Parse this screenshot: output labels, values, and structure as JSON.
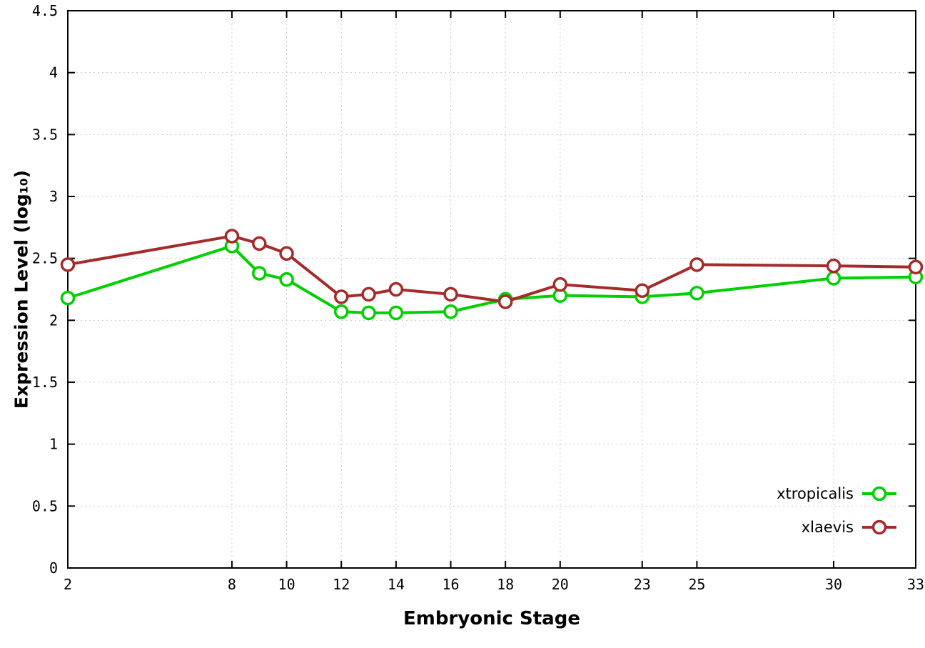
{
  "chart_data": {
    "type": "line",
    "title": "",
    "xlabel": "Embryonic Stage",
    "ylabel": "Expression Level (log₁₀)",
    "xlim": [
      2,
      33
    ],
    "ylim": [
      0,
      4.5
    ],
    "grid": true,
    "legend_position": "bottom-right",
    "xticks": [
      2,
      8,
      10,
      12,
      14,
      16,
      18,
      20,
      23,
      25,
      30,
      33
    ],
    "xticklabels": [
      "2",
      "8",
      "10",
      "12",
      "14",
      "16",
      "18",
      "20",
      "23",
      "25",
      "30",
      "33"
    ],
    "yticks": [
      0,
      0.5,
      1,
      1.5,
      2,
      2.5,
      3,
      3.5,
      4,
      4.5
    ],
    "yticklabels": [
      "0",
      "0.5",
      "1",
      "1.5",
      "2",
      "2.5",
      "3",
      "3.5",
      "4",
      "4.5"
    ],
    "x": [
      2,
      8,
      9,
      10,
      12,
      13,
      14,
      16,
      18,
      20,
      23,
      25,
      30,
      33
    ],
    "series": [
      {
        "name": "xtropicalis",
        "color": "#00d000",
        "values": [
          2.18,
          2.6,
          2.38,
          2.33,
          2.07,
          2.06,
          2.06,
          2.07,
          2.17,
          2.2,
          2.19,
          2.22,
          2.34,
          2.35
        ]
      },
      {
        "name": "xlaevis",
        "color": "#a52a2a",
        "values": [
          2.45,
          2.68,
          2.62,
          2.54,
          2.19,
          2.21,
          2.25,
          2.21,
          2.15,
          2.29,
          2.24,
          2.45,
          2.44,
          2.43
        ]
      }
    ]
  }
}
